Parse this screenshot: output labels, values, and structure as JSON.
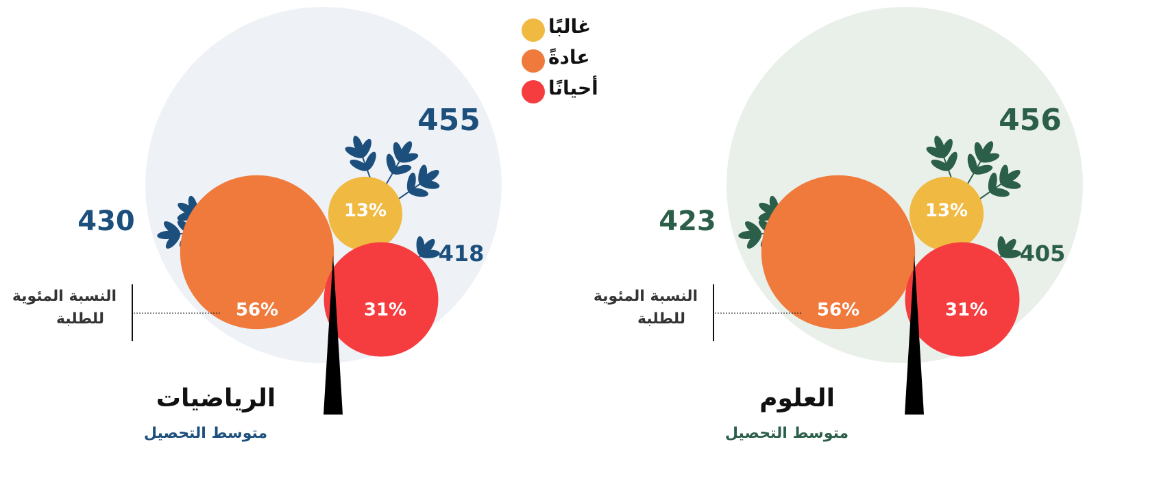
{
  "legend": [
    {
      "name": "غالبًا",
      "color": "#f0b942"
    },
    {
      "name": "عادةً",
      "color": "#ef7a3c"
    },
    {
      "name": "أحيانًا",
      "color": "#f53d3f"
    }
  ],
  "chart_data": [
    {
      "type": "bubble-tree",
      "title": "الرياضيات",
      "subtitle": "متوسط التحصيل",
      "note": [
        "النسبة المئوية",
        "للطلبة"
      ],
      "values": [
        13,
        56,
        31
      ],
      "value_labels": [
        "13%",
        "56%",
        "31%"
      ],
      "scores": [
        455,
        430,
        418
      ],
      "color": "#1d4f7c",
      "background": "#eef2f7"
    },
    {
      "type": "bubble-tree",
      "title": "العلوم",
      "subtitle": "متوسط التحصيل",
      "note": [
        "النسبة المئوية",
        "للطلبة"
      ],
      "values": [
        13,
        56,
        31
      ],
      "value_labels": [
        "13%",
        "56%",
        "31%"
      ],
      "scores": [
        456,
        423,
        405
      ],
      "color": "#2c5f4a",
      "background": "#e9f0ea"
    }
  ]
}
